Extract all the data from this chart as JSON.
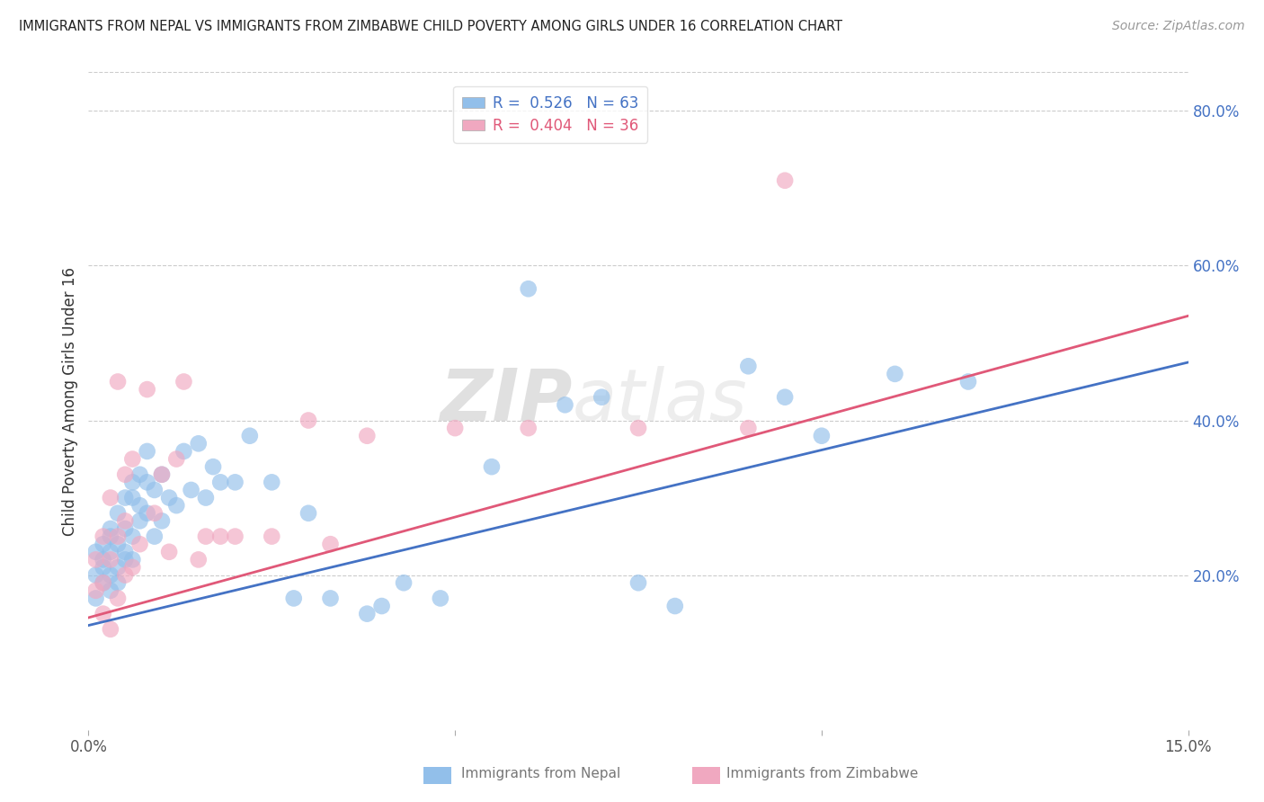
{
  "title": "IMMIGRANTS FROM NEPAL VS IMMIGRANTS FROM ZIMBABWE CHILD POVERTY AMONG GIRLS UNDER 16 CORRELATION CHART",
  "source": "Source: ZipAtlas.com",
  "ylabel": "Child Poverty Among Girls Under 16",
  "xlim": [
    0.0,
    0.15
  ],
  "ylim": [
    0.0,
    0.85
  ],
  "xticks": [
    0.0,
    0.05,
    0.1,
    0.15
  ],
  "xticklabels": [
    "0.0%",
    "",
    "",
    "15.0%"
  ],
  "yticks_right": [
    0.2,
    0.4,
    0.6,
    0.8
  ],
  "ytick_right_labels": [
    "20.0%",
    "40.0%",
    "60.0%",
    "80.0%"
  ],
  "nepal_color": "#92BFEA",
  "zimbabwe_color": "#F0A8C0",
  "nepal_line_color": "#4472C4",
  "zimbabwe_line_color": "#E05878",
  "nepal_label": "Immigrants from Nepal",
  "zimbabwe_label": "Immigrants from Zimbabwe",
  "nepal_R": 0.526,
  "nepal_N": 63,
  "zimbabwe_R": 0.404,
  "zimbabwe_N": 36,
  "watermark_zip": "ZIP",
  "watermark_atlas": "atlas",
  "background_color": "#FFFFFF",
  "grid_color": "#CCCCCC",
  "nepal_x": [
    0.001,
    0.001,
    0.001,
    0.002,
    0.002,
    0.002,
    0.002,
    0.003,
    0.003,
    0.003,
    0.003,
    0.003,
    0.004,
    0.004,
    0.004,
    0.004,
    0.005,
    0.005,
    0.005,
    0.005,
    0.006,
    0.006,
    0.006,
    0.006,
    0.007,
    0.007,
    0.007,
    0.008,
    0.008,
    0.008,
    0.009,
    0.009,
    0.01,
    0.01,
    0.011,
    0.012,
    0.013,
    0.014,
    0.015,
    0.016,
    0.017,
    0.018,
    0.02,
    0.022,
    0.025,
    0.028,
    0.03,
    0.033,
    0.038,
    0.04,
    0.043,
    0.048,
    0.055,
    0.06,
    0.065,
    0.07,
    0.075,
    0.08,
    0.09,
    0.095,
    0.1,
    0.11,
    0.12
  ],
  "nepal_y": [
    0.2,
    0.23,
    0.17,
    0.22,
    0.19,
    0.24,
    0.21,
    0.25,
    0.2,
    0.18,
    0.26,
    0.23,
    0.28,
    0.21,
    0.24,
    0.19,
    0.3,
    0.23,
    0.26,
    0.22,
    0.3,
    0.25,
    0.32,
    0.22,
    0.29,
    0.33,
    0.27,
    0.32,
    0.36,
    0.28,
    0.31,
    0.25,
    0.27,
    0.33,
    0.3,
    0.29,
    0.36,
    0.31,
    0.37,
    0.3,
    0.34,
    0.32,
    0.32,
    0.38,
    0.32,
    0.17,
    0.28,
    0.17,
    0.15,
    0.16,
    0.19,
    0.17,
    0.34,
    0.57,
    0.42,
    0.43,
    0.19,
    0.16,
    0.47,
    0.43,
    0.38,
    0.46,
    0.45
  ],
  "zimbabwe_x": [
    0.001,
    0.001,
    0.002,
    0.002,
    0.002,
    0.003,
    0.003,
    0.003,
    0.004,
    0.004,
    0.004,
    0.005,
    0.005,
    0.005,
    0.006,
    0.006,
    0.007,
    0.008,
    0.009,
    0.01,
    0.011,
    0.012,
    0.013,
    0.015,
    0.016,
    0.018,
    0.02,
    0.025,
    0.03,
    0.033,
    0.038,
    0.05,
    0.06,
    0.075,
    0.09,
    0.095
  ],
  "zimbabwe_y": [
    0.18,
    0.22,
    0.15,
    0.19,
    0.25,
    0.13,
    0.22,
    0.3,
    0.17,
    0.25,
    0.45,
    0.2,
    0.27,
    0.33,
    0.21,
    0.35,
    0.24,
    0.44,
    0.28,
    0.33,
    0.23,
    0.35,
    0.45,
    0.22,
    0.25,
    0.25,
    0.25,
    0.25,
    0.4,
    0.24,
    0.38,
    0.39,
    0.39,
    0.39,
    0.39,
    0.71
  ],
  "nepal_line_x0": 0.0,
  "nepal_line_y0": 0.135,
  "nepal_line_x1": 0.15,
  "nepal_line_y1": 0.475,
  "zimbabwe_line_x0": 0.0,
  "zimbabwe_line_y0": 0.145,
  "zimbabwe_line_x1": 0.15,
  "zimbabwe_line_y1": 0.535
}
